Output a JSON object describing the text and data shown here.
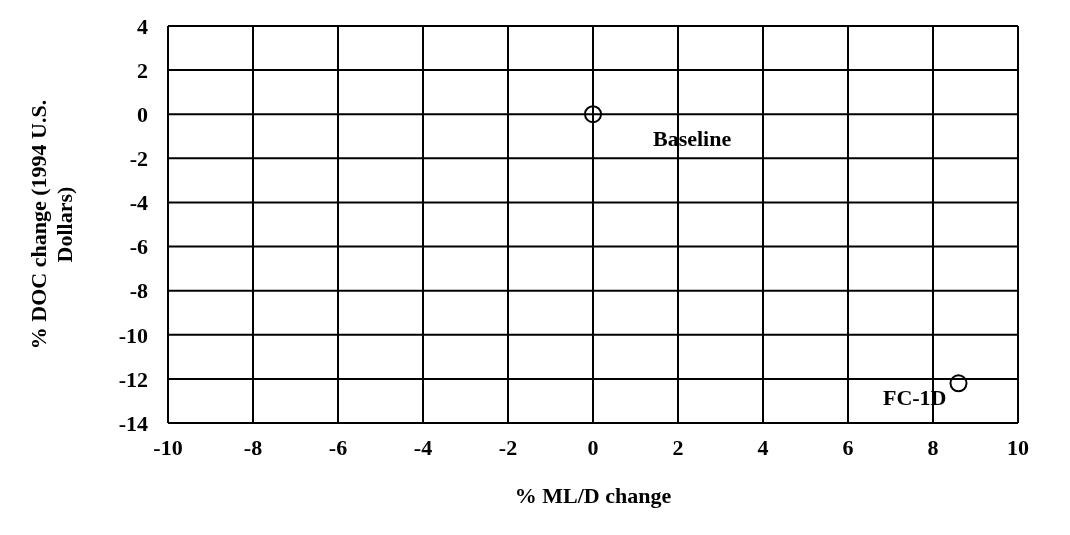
{
  "chart_data": {
    "type": "scatter",
    "xlabel": "% ML/D change",
    "ylabel": "% DOC change (1994 U.S. Dollars)",
    "x": [
      0,
      8.6
    ],
    "values": [
      0,
      -12.2
    ],
    "color": "#000000",
    "marker": "circle",
    "xlim": [
      -10,
      10
    ],
    "xticks": [
      -10,
      -8,
      -6,
      -4,
      -2,
      0,
      2,
      4,
      6,
      8,
      10
    ],
    "ylim": [
      -14,
      4
    ],
    "yticks": [
      -14,
      -12,
      -10,
      -8,
      -6,
      -4,
      -2,
      0,
      2,
      4
    ],
    "grid": true,
    "annotations": [
      {
        "text": "Baseline",
        "x": 0,
        "y": 0
      },
      {
        "text": "FC-1D",
        "x": 8.6,
        "y": -12.2
      }
    ]
  }
}
